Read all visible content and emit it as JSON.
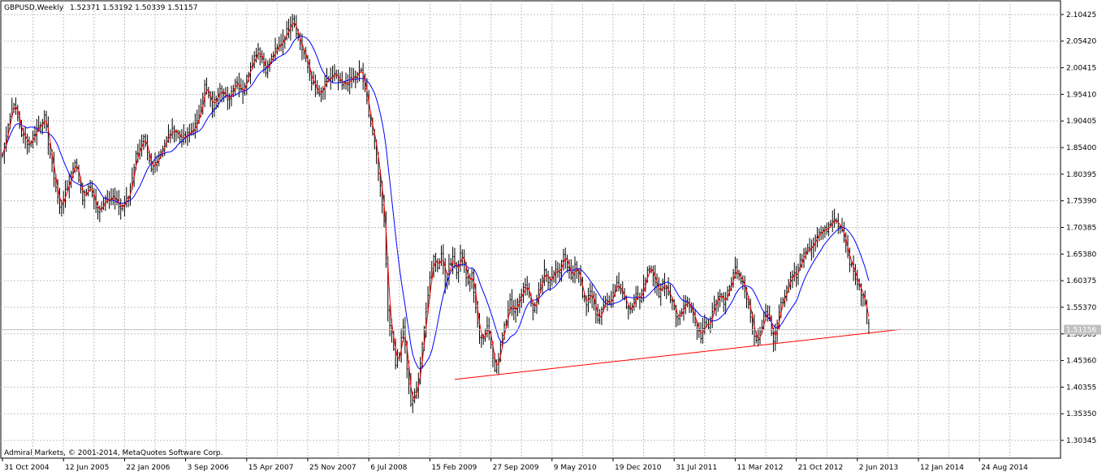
{
  "header": {
    "symbol_timeframe": "GBPUSD,Weekly",
    "ohlc": "1.52371 1.53192 1.50339 1.51157"
  },
  "footer": {
    "copyright": "Admiral Markets, © 2001-2014, MetaQuotes Software Corp."
  },
  "current_price": "1.51156",
  "chart_data": {
    "type": "ohlc-bar",
    "symbol": "GBPUSD",
    "timeframe": "Weekly",
    "last_bar": {
      "open": 1.52371,
      "high": 1.53192,
      "low": 1.50339,
      "close": 1.51157
    },
    "y_ticks": [
      "2.10425",
      "2.05420",
      "2.00415",
      "1.95410",
      "1.90405",
      "1.85400",
      "1.80395",
      "1.75390",
      "1.70385",
      "1.65380",
      "1.60375",
      "1.55370",
      "1.50365",
      "1.45360",
      "1.40355",
      "1.35350",
      "1.30345"
    ],
    "ylim": [
      1.27,
      2.13
    ],
    "x_ticks": [
      "31 Oct 2004",
      "12 Jun 2005",
      "22 Jan 2006",
      "3 Sep 2006",
      "15 Apr 2007",
      "25 Nov 2007",
      "6 Jul 2008",
      "15 Feb 2009",
      "27 Sep 2009",
      "9 May 2010",
      "19 Dec 2010",
      "31 Jul 2011",
      "11 Mar 2012",
      "21 Oct 2012",
      "2 Jun 2013",
      "12 Jan 2014",
      "24 Aug 2014"
    ],
    "x_tick_weeks": [
      0,
      32,
      64,
      96,
      128,
      160,
      192,
      224,
      256,
      288,
      320,
      352,
      384,
      416,
      448,
      480,
      512
    ],
    "total_weeks": 530,
    "close_anchors": [
      [
        0,
        1.84
      ],
      [
        3,
        1.9
      ],
      [
        6,
        1.94
      ],
      [
        10,
        1.88
      ],
      [
        14,
        1.86
      ],
      [
        18,
        1.89
      ],
      [
        22,
        1.91
      ],
      [
        26,
        1.82
      ],
      [
        30,
        1.74
      ],
      [
        34,
        1.78
      ],
      [
        38,
        1.83
      ],
      [
        42,
        1.76
      ],
      [
        46,
        1.78
      ],
      [
        50,
        1.73
      ],
      [
        54,
        1.76
      ],
      [
        58,
        1.76
      ],
      [
        62,
        1.74
      ],
      [
        66,
        1.76
      ],
      [
        70,
        1.84
      ],
      [
        74,
        1.87
      ],
      [
        78,
        1.81
      ],
      [
        82,
        1.84
      ],
      [
        86,
        1.87
      ],
      [
        90,
        1.89
      ],
      [
        94,
        1.87
      ],
      [
        98,
        1.88
      ],
      [
        102,
        1.9
      ],
      [
        106,
        1.97
      ],
      [
        110,
        1.93
      ],
      [
        114,
        1.97
      ],
      [
        118,
        1.94
      ],
      [
        122,
        1.98
      ],
      [
        126,
        1.96
      ],
      [
        130,
        2.01
      ],
      [
        134,
        2.04
      ],
      [
        138,
        2.0
      ],
      [
        142,
        2.03
      ],
      [
        146,
        2.05
      ],
      [
        150,
        2.08
      ],
      [
        152,
        2.1
      ],
      [
        155,
        2.06
      ],
      [
        158,
        2.03
      ],
      [
        162,
        1.98
      ],
      [
        166,
        1.95
      ],
      [
        170,
        1.98
      ],
      [
        174,
        1.99
      ],
      [
        178,
        1.97
      ],
      [
        182,
        1.98
      ],
      [
        186,
        1.99
      ],
      [
        188,
        2.0
      ],
      [
        190,
        1.96
      ],
      [
        192,
        1.92
      ],
      [
        194,
        1.88
      ],
      [
        196,
        1.84
      ],
      [
        198,
        1.78
      ],
      [
        200,
        1.72
      ],
      [
        202,
        1.55
      ],
      [
        204,
        1.5
      ],
      [
        206,
        1.45
      ],
      [
        208,
        1.47
      ],
      [
        210,
        1.52
      ],
      [
        212,
        1.44
      ],
      [
        214,
        1.37
      ],
      [
        216,
        1.39
      ],
      [
        218,
        1.42
      ],
      [
        220,
        1.48
      ],
      [
        222,
        1.55
      ],
      [
        224,
        1.61
      ],
      [
        226,
        1.65
      ],
      [
        228,
        1.63
      ],
      [
        230,
        1.66
      ],
      [
        232,
        1.6
      ],
      [
        234,
        1.63
      ],
      [
        236,
        1.65
      ],
      [
        238,
        1.62
      ],
      [
        240,
        1.66
      ],
      [
        242,
        1.63
      ],
      [
        244,
        1.6
      ],
      [
        246,
        1.62
      ],
      [
        248,
        1.55
      ],
      [
        250,
        1.5
      ],
      [
        252,
        1.49
      ],
      [
        254,
        1.52
      ],
      [
        256,
        1.48
      ],
      [
        258,
        1.44
      ],
      [
        260,
        1.46
      ],
      [
        262,
        1.5
      ],
      [
        264,
        1.53
      ],
      [
        266,
        1.57
      ],
      [
        268,
        1.54
      ],
      [
        270,
        1.56
      ],
      [
        272,
        1.58
      ],
      [
        274,
        1.6
      ],
      [
        276,
        1.57
      ],
      [
        278,
        1.55
      ],
      [
        280,
        1.57
      ],
      [
        282,
        1.6
      ],
      [
        284,
        1.62
      ],
      [
        286,
        1.6
      ],
      [
        288,
        1.61
      ],
      [
        290,
        1.63
      ],
      [
        292,
        1.62
      ],
      [
        294,
        1.65
      ],
      [
        296,
        1.63
      ],
      [
        298,
        1.61
      ],
      [
        300,
        1.63
      ],
      [
        302,
        1.62
      ],
      [
        304,
        1.58
      ],
      [
        306,
        1.56
      ],
      [
        308,
        1.58
      ],
      [
        310,
        1.56
      ],
      [
        312,
        1.53
      ],
      [
        314,
        1.55
      ],
      [
        316,
        1.57
      ],
      [
        318,
        1.56
      ],
      [
        320,
        1.58
      ],
      [
        322,
        1.6
      ],
      [
        324,
        1.59
      ],
      [
        326,
        1.57
      ],
      [
        328,
        1.55
      ],
      [
        330,
        1.56
      ],
      [
        332,
        1.58
      ],
      [
        334,
        1.56
      ],
      [
        336,
        1.6
      ],
      [
        338,
        1.62
      ],
      [
        340,
        1.62
      ],
      [
        342,
        1.6
      ],
      [
        344,
        1.58
      ],
      [
        346,
        1.6
      ],
      [
        348,
        1.59
      ],
      [
        350,
        1.57
      ],
      [
        352,
        1.55
      ],
      [
        354,
        1.53
      ],
      [
        356,
        1.55
      ],
      [
        358,
        1.57
      ],
      [
        360,
        1.56
      ],
      [
        362,
        1.54
      ],
      [
        364,
        1.51
      ],
      [
        366,
        1.5
      ],
      [
        368,
        1.53
      ],
      [
        370,
        1.52
      ],
      [
        372,
        1.55
      ],
      [
        374,
        1.57
      ],
      [
        376,
        1.58
      ],
      [
        378,
        1.56
      ],
      [
        380,
        1.58
      ],
      [
        382,
        1.6
      ],
      [
        384,
        1.63
      ],
      [
        386,
        1.61
      ],
      [
        388,
        1.6
      ],
      [
        390,
        1.57
      ],
      [
        392,
        1.54
      ],
      [
        394,
        1.5
      ],
      [
        396,
        1.49
      ],
      [
        398,
        1.52
      ],
      [
        400,
        1.55
      ],
      [
        402,
        1.53
      ],
      [
        404,
        1.49
      ],
      [
        406,
        1.53
      ],
      [
        408,
        1.56
      ],
      [
        410,
        1.58
      ],
      [
        412,
        1.6
      ],
      [
        414,
        1.62
      ],
      [
        416,
        1.61
      ],
      [
        418,
        1.64
      ],
      [
        420,
        1.65
      ],
      [
        422,
        1.66
      ],
      [
        424,
        1.67
      ],
      [
        426,
        1.68
      ],
      [
        428,
        1.69
      ],
      [
        430,
        1.7
      ],
      [
        432,
        1.7
      ],
      [
        434,
        1.71
      ],
      [
        436,
        1.72
      ],
      [
        438,
        1.71
      ],
      [
        440,
        1.7
      ],
      [
        442,
        1.67
      ],
      [
        444,
        1.64
      ],
      [
        446,
        1.62
      ],
      [
        448,
        1.6
      ],
      [
        450,
        1.58
      ],
      [
        452,
        1.56
      ],
      [
        454,
        1.51
      ]
    ],
    "trendline": {
      "from": [
        279,
        1.418
      ],
      "to": [
        567,
        1.512
      ]
    },
    "series": [
      {
        "name": "",
        "kind": "fast-ma",
        "color": "#ff0000"
      },
      {
        "name": "",
        "kind": "slow-ma",
        "color": "#0000ff"
      }
    ],
    "colors": {
      "bars": "#000000",
      "grid": "#c0c0c0",
      "trendline": "#ff0000",
      "price_label_bg": "#c0c0c0"
    }
  }
}
